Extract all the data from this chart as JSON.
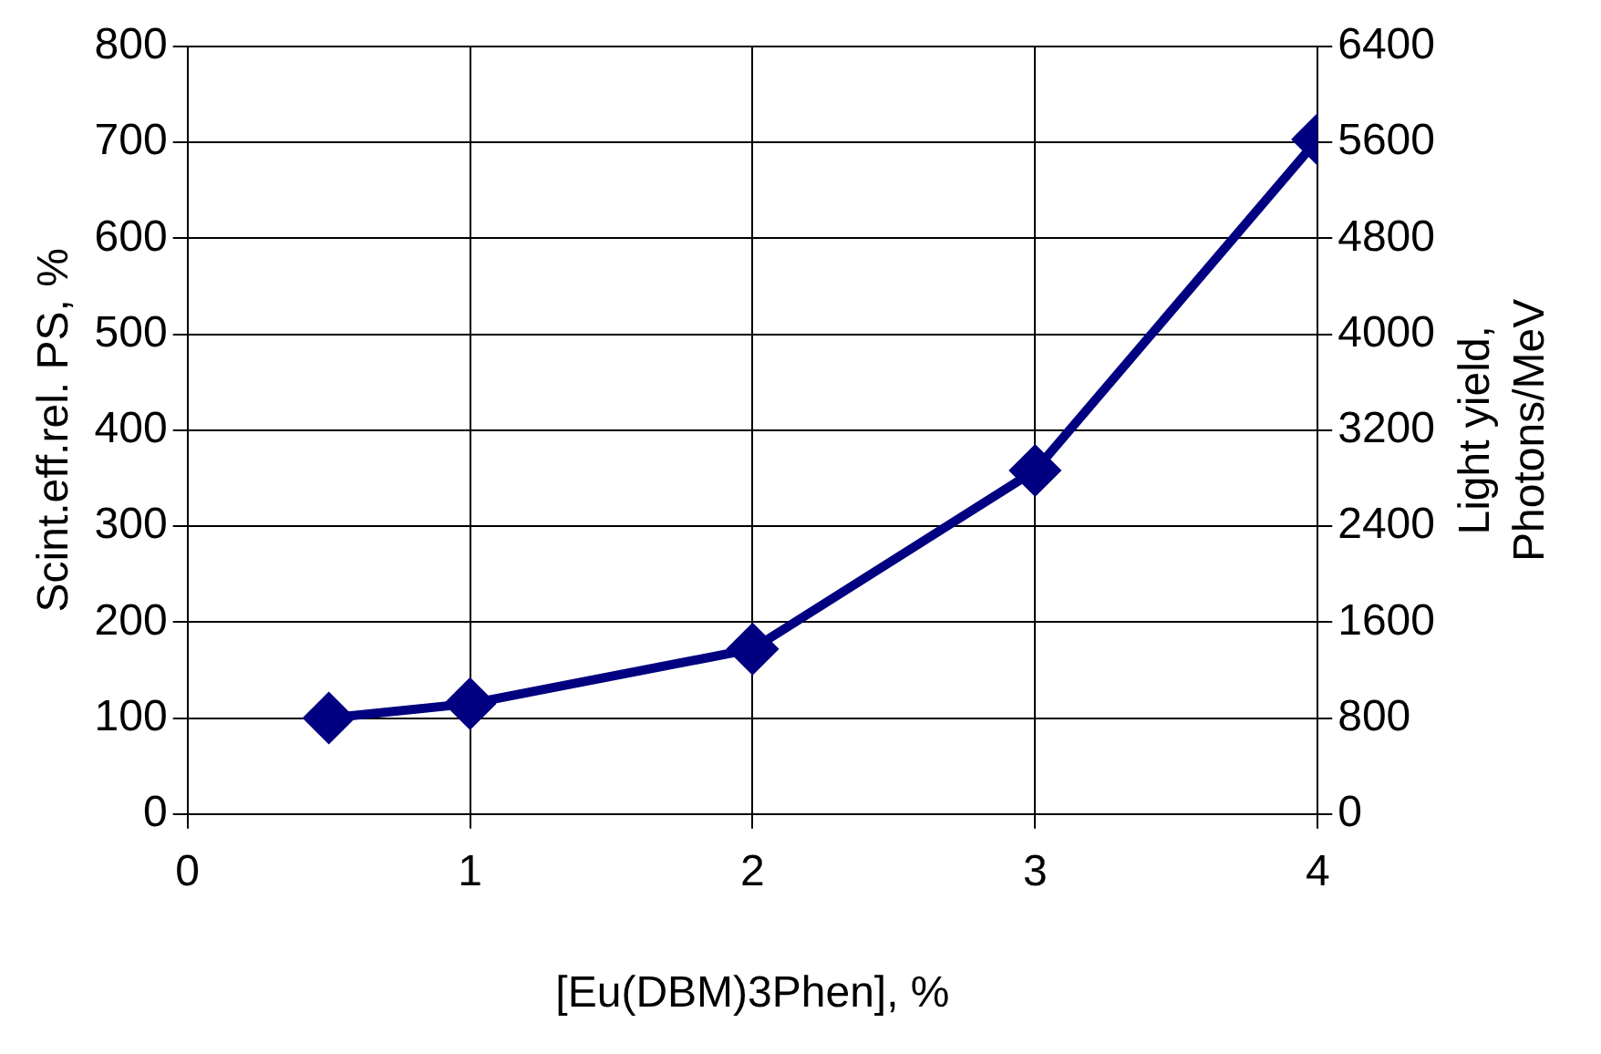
{
  "chart_data": {
    "type": "line",
    "xlabel": "[Eu(DBM)3Phen], %",
    "ylabel": "Scint.eff.rel. PS, %",
    "y2label": "Light yield,\nPhotons/MeV",
    "x": [
      0.5,
      1,
      2,
      3,
      4
    ],
    "series": [
      {
        "color": "#000080",
        "values": [
          100,
          115,
          172,
          358,
          703
        ]
      }
    ],
    "xlim": [
      0,
      4
    ],
    "xticks": [
      0,
      1,
      2,
      3,
      4
    ],
    "ylim": [
      0,
      800
    ],
    "yticks": [
      0,
      100,
      200,
      300,
      400,
      500,
      600,
      700,
      800
    ],
    "y2lim": [
      0,
      6400
    ],
    "y2ticks": [
      0,
      800,
      1600,
      2400,
      3200,
      4000,
      4800,
      5600,
      6400
    ],
    "grid": true,
    "legend": false,
    "marker": "diamond",
    "line_style": "solid"
  }
}
